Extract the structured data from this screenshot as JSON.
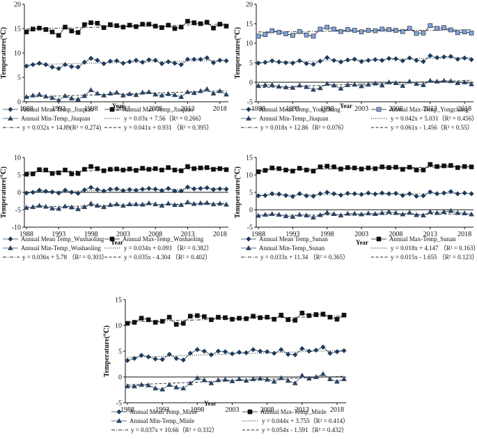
{
  "chart_data": [
    {
      "type": "line",
      "station": "Jiuquan",
      "x": [
        1988,
        1989,
        1990,
        1991,
        1992,
        1993,
        1994,
        1995,
        1996,
        1997,
        1998,
        1999,
        2000,
        2001,
        2002,
        2003,
        2004,
        2005,
        2006,
        2007,
        2008,
        2009,
        2010,
        2011,
        2012,
        2013,
        2014,
        2015,
        2016,
        2017,
        2018,
        2019
      ],
      "xticks": [
        "1988",
        "1993",
        "1998",
        "2003",
        "2008",
        "2013",
        "2018"
      ],
      "ylim": [
        0,
        20
      ],
      "yticks": [
        "0",
        "5",
        "10",
        "15",
        "20"
      ],
      "ylabel": "Temperature(℃)",
      "xlabel": "Year",
      "series": [
        {
          "name": "Annual Mean Temp_Jiuquan",
          "marker": "diamond",
          "values": [
            7.3,
            7.6,
            7.9,
            7.6,
            7.1,
            6.8,
            7.6,
            7.2,
            7.1,
            8.1,
            8.9,
            8.5,
            7.8,
            8.3,
            8.4,
            7.9,
            8.2,
            8.5,
            8.1,
            8.6,
            8.5,
            7.8,
            8.2,
            7.9,
            7.6,
            8.7,
            8.7,
            8.7,
            9.0,
            8.0,
            8.5,
            8.4
          ]
        },
        {
          "name": "Annual Max-Temp_Jiuquan",
          "marker": "square",
          "values": [
            14.3,
            14.9,
            15.1,
            14.8,
            14.3,
            13.6,
            15.3,
            14.5,
            14.2,
            15.8,
            16.2,
            16.1,
            15.2,
            15.8,
            15.6,
            15.3,
            15.7,
            15.4,
            15.9,
            15.9,
            15.5,
            15.2,
            15.7,
            15.0,
            15.3,
            16.5,
            16.2,
            16.0,
            16.3,
            15.1,
            15.9,
            15.5
          ]
        },
        {
          "name": "Annual Min-Temp_Jiuquan",
          "marker": "triangle",
          "values": [
            1.0,
            1.3,
            1.5,
            1.1,
            0.8,
            0.3,
            1.2,
            0.7,
            0.5,
            1.2,
            2.4,
            1.7,
            1.3,
            1.7,
            1.9,
            1.3,
            1.6,
            1.4,
            1.9,
            2.0,
            1.5,
            1.3,
            1.6,
            1.4,
            1.0,
            2.0,
            1.8,
            2.2,
            2.6,
            1.7,
            2.2,
            1.5
          ]
        }
      ],
      "trendlines": [
        {
          "label": "y = 0.03x + 7.56（R² = 0.266）",
          "slope": 0.03,
          "intercept": 7.56,
          "style": "dotted"
        },
        {
          "label": "y = 0.032x + 14.89(R² = 0.274)",
          "slope": 0.032,
          "intercept": 14.89,
          "style": "dashdot"
        },
        {
          "label": "y = 0.041x + 0.931 （R² = 0.395）",
          "slope": 0.041,
          "intercept": 0.931,
          "style": "dashed"
        }
      ]
    },
    {
      "type": "line",
      "station": "Yongchang",
      "x": [
        1988,
        1989,
        1990,
        1991,
        1992,
        1993,
        1994,
        1995,
        1996,
        1997,
        1998,
        1999,
        2000,
        2001,
        2002,
        2003,
        2004,
        2005,
        2006,
        2007,
        2008,
        2009,
        2010,
        2011,
        2012,
        2013,
        2014,
        2015,
        2016,
        2017,
        2018,
        2019
      ],
      "xticks": [
        "1988",
        "1993",
        "1998",
        "2003",
        "2008",
        "2013",
        "2018"
      ],
      "ylim": [
        -5,
        20
      ],
      "yticks": [
        "-5",
        "0",
        "5",
        "10",
        "15",
        "20"
      ],
      "ylabel": "Temperature(℃)",
      "xlabel": "Year",
      "series": [
        {
          "name": "Annual Mean Temp_Yongchang",
          "marker": "diamond",
          "values": [
            4.9,
            5.1,
            5.5,
            5.2,
            5.0,
            4.9,
            5.5,
            4.8,
            4.6,
            5.4,
            6.3,
            5.6,
            5.2,
            5.7,
            5.9,
            5.3,
            5.6,
            5.8,
            5.6,
            6.1,
            6.0,
            5.5,
            6.2,
            5.6,
            5.3,
            6.8,
            6.3,
            6.5,
            6.6,
            5.9,
            6.2,
            5.8
          ]
        },
        {
          "name": "Annual Max-Temp_Yongchang",
          "marker": "square",
          "values": [
            11.8,
            12.2,
            13.2,
            12.8,
            12.4,
            12.0,
            13.0,
            12.1,
            11.8,
            13.6,
            14.1,
            13.6,
            13.0,
            13.5,
            13.3,
            12.9,
            13.3,
            13.2,
            13.6,
            13.5,
            13.3,
            13.0,
            13.8,
            12.5,
            12.6,
            14.5,
            13.8,
            14.0,
            13.4,
            12.7,
            12.9,
            12.6
          ]
        },
        {
          "name": "Annual Min-Temp_Jiuquan",
          "marker": "triangle",
          "values": [
            -0.9,
            -0.7,
            -0.7,
            -1.1,
            -1.3,
            -1.4,
            -0.8,
            -1.2,
            -1.9,
            -1.5,
            -0.4,
            -0.8,
            -1.6,
            -0.7,
            -0.6,
            -1.0,
            -0.6,
            -0.3,
            -0.8,
            0.0,
            -0.2,
            -0.9,
            0.2,
            -0.4,
            -0.7,
            0.4,
            0.2,
            0.4,
            0.3,
            -0.2,
            0.0,
            -0.5
          ]
        }
      ],
      "trendlines": [
        {
          "label": "y = 0.042x + 5.031（R² = 0.456）",
          "slope": 0.042,
          "intercept": 5.031,
          "style": "dotted"
        },
        {
          "label": "y = 0.018x + 12.86（R² = 0.076）",
          "slope": 0.018,
          "intercept": 12.86,
          "style": "dashdot"
        },
        {
          "label": "y = 0.061x - 1.456（R² = 0.55）",
          "slope": 0.061,
          "intercept": -1.456,
          "style": "dashed"
        }
      ]
    },
    {
      "type": "line",
      "station": "Wushaoling",
      "x": [
        1988,
        1989,
        1990,
        1991,
        1992,
        1993,
        1994,
        1995,
        1996,
        1997,
        1998,
        1999,
        2000,
        2001,
        2002,
        2003,
        2004,
        2005,
        2006,
        2007,
        2008,
        2009,
        2010,
        2011,
        2012,
        2013,
        2014,
        2015,
        2016,
        2017,
        2018,
        2019
      ],
      "xticks": [
        "1988",
        "1993",
        "1998",
        "2003",
        "2008",
        "2013",
        "2018"
      ],
      "ylim": [
        -10,
        10
      ],
      "yticks": [
        "-10",
        "-5",
        "0",
        "5",
        "10"
      ],
      "ylabel": "Temperature(℃)",
      "xlabel": "Year",
      "series": [
        {
          "name": "Annual Mean Temp_Wushaoling",
          "marker": "diamond",
          "values": [
            -0.2,
            0.0,
            0.6,
            0.3,
            0.1,
            -0.2,
            0.6,
            0.0,
            -0.3,
            0.7,
            1.4,
            0.8,
            0.4,
            0.9,
            1.0,
            0.5,
            0.8,
            0.6,
            0.9,
            1.1,
            0.9,
            0.5,
            1.1,
            0.4,
            0.4,
            1.5,
            1.0,
            1.1,
            1.3,
            0.8,
            1.0,
            0.9
          ]
        },
        {
          "name": "Annual Max-Temp_Wushaoling",
          "marker": "square",
          "values": [
            5.2,
            5.3,
            6.5,
            6.4,
            5.4,
            5.6,
            6.4,
            5.3,
            5.4,
            6.6,
            7.4,
            6.8,
            6.2,
            6.6,
            6.7,
            6.4,
            6.7,
            6.3,
            6.9,
            6.6,
            6.8,
            6.4,
            7.1,
            6.4,
            6.2,
            7.4,
            6.8,
            7.0,
            7.1,
            6.6,
            6.8,
            6.5
          ]
        },
        {
          "name": "Annual Min-Temp_Wushaoling",
          "marker": "triangle",
          "values": [
            -4.4,
            -4.2,
            -3.8,
            -4.1,
            -4.6,
            -4.7,
            -4.0,
            -4.3,
            -4.8,
            -4.2,
            -3.2,
            -3.8,
            -4.2,
            -3.6,
            -3.4,
            -3.8,
            -3.4,
            -3.4,
            -3.5,
            -3.1,
            -3.4,
            -3.8,
            -3.2,
            -3.6,
            -3.6,
            -2.8,
            -3.3,
            -3.1,
            -3.0,
            -3.4,
            -3.2,
            -3.5
          ]
        }
      ],
      "trendlines": [
        {
          "label": "y = 0.034x + 0.093 （R² = 0.382）",
          "slope": 0.034,
          "intercept": 0.093,
          "style": "dotted"
        },
        {
          "label": "y = 0.036x + 5.78 （R² = 0.303）",
          "slope": 0.036,
          "intercept": 5.78,
          "style": "dashdot"
        },
        {
          "label": "y = 0.035x - 4.304 （R² = 0.402）",
          "slope": 0.035,
          "intercept": -4.304,
          "style": "dashed"
        }
      ]
    },
    {
      "type": "line",
      "station": "Sunan",
      "x": [
        1988,
        1989,
        1990,
        1991,
        1992,
        1993,
        1994,
        1995,
        1996,
        1997,
        1998,
        1999,
        2000,
        2001,
        2002,
        2003,
        2004,
        2005,
        2006,
        2007,
        2008,
        2009,
        2010,
        2011,
        2012,
        2013,
        2014,
        2015,
        2016,
        2017,
        2018,
        2019
      ],
      "xticks": [
        "1988",
        "1993",
        "1998",
        "2003",
        "2008",
        "2013",
        "2018"
      ],
      "ylim": [
        -5,
        15
      ],
      "yticks": [
        "-5",
        "0",
        "5",
        "10",
        "15"
      ],
      "ylabel": "Temperature(℃)",
      "xlabel": "Year",
      "series": [
        {
          "name": "Annual Mean Temp_Sunan",
          "marker": "diamond",
          "values": [
            4.0,
            4.1,
            4.6,
            4.5,
            4.1,
            3.8,
            4.6,
            4.0,
            3.9,
            4.6,
            5.0,
            4.6,
            4.2,
            4.7,
            4.6,
            4.4,
            4.8,
            4.5,
            4.8,
            4.6,
            4.7,
            4.1,
            4.6,
            3.9,
            4.0,
            5.1,
            4.6,
            4.8,
            5.2,
            4.6,
            4.8,
            4.6
          ]
        },
        {
          "name": "Annual Max-Temp_Sunan",
          "marker": "square",
          "values": [
            10.9,
            11.3,
            12.0,
            11.8,
            11.4,
            11.1,
            11.9,
            11.4,
            11.1,
            12.3,
            12.5,
            12.3,
            11.7,
            12.1,
            12.0,
            11.7,
            12.0,
            11.8,
            12.3,
            12.1,
            12.2,
            11.6,
            12.2,
            11.4,
            11.4,
            13.0,
            12.4,
            12.6,
            12.7,
            12.1,
            12.4,
            12.3
          ]
        },
        {
          "name": "Annual Min-Temp_Sunan",
          "marker": "triangle",
          "values": [
            -1.7,
            -1.4,
            -1.2,
            -1.4,
            -1.8,
            -2.0,
            -1.4,
            -1.6,
            -2.2,
            -1.5,
            -0.8,
            -1.2,
            -1.6,
            -1.1,
            -1.1,
            -1.3,
            -1.0,
            -1.2,
            -0.9,
            -0.6,
            -0.9,
            -1.3,
            -0.8,
            -1.5,
            -1.6,
            -0.6,
            -0.9,
            -0.6,
            -0.3,
            -0.9,
            -1.0,
            -1.3
          ]
        }
      ],
      "trendlines": [
        {
          "label": "y = 0.018x + 4.147 （R² = 0.163）",
          "slope": 0.018,
          "intercept": 4.147,
          "style": "dotted"
        },
        {
          "label": "y = 0.033x + 11.34 （R² = 0.365）",
          "slope": 0.033,
          "intercept": 11.34,
          "style": "dashdot"
        },
        {
          "label": "y = 0.015x - 1.655 （R² = 0.123）",
          "slope": 0.015,
          "intercept": -1.655,
          "style": "dashed"
        }
      ]
    },
    {
      "type": "line",
      "station": "Minle",
      "x": [
        1988,
        1989,
        1990,
        1991,
        1992,
        1993,
        1994,
        1995,
        1996,
        1997,
        1998,
        1999,
        2000,
        2001,
        2002,
        2003,
        2004,
        2005,
        2006,
        2007,
        2008,
        2009,
        2010,
        2011,
        2012,
        2013,
        2014,
        2015,
        2016,
        2017,
        2018,
        2019
      ],
      "xticks": [
        "1988",
        "1993",
        "1998",
        "2003",
        "2008",
        "2013",
        "2018"
      ],
      "ylim": [
        -5,
        15
      ],
      "yticks": [
        "-5",
        "0",
        "5",
        "10",
        "15"
      ],
      "ylabel": "Temperature(℃)",
      "xlabel": "Year",
      "series": [
        {
          "name": "Annual Mean Temp_Minle",
          "marker": "diamond",
          "values": [
            3.2,
            3.6,
            4.2,
            3.9,
            3.5,
            3.4,
            4.4,
            3.6,
            3.3,
            4.6,
            5.3,
            5.0,
            4.3,
            5.0,
            4.9,
            4.5,
            4.8,
            4.7,
            5.3,
            5.0,
            4.9,
            4.6,
            5.3,
            4.4,
            4.3,
            5.5,
            5.0,
            5.2,
            5.8,
            4.6,
            4.9,
            5.1
          ]
        },
        {
          "name": "Annual Max-Temp_Minle",
          "marker": "square",
          "values": [
            10.4,
            10.6,
            11.4,
            11.1,
            10.6,
            10.8,
            11.6,
            10.2,
            10.4,
            11.8,
            11.9,
            11.7,
            11.1,
            11.6,
            11.5,
            11.2,
            11.4,
            11.3,
            11.8,
            11.5,
            11.6,
            11.2,
            12.0,
            11.1,
            11.0,
            12.4,
            11.9,
            12.1,
            12.2,
            11.6,
            11.2,
            12.0
          ]
        },
        {
          "name": "Annual Min-Temp_Minle",
          "marker": "triangle",
          "values": [
            -1.8,
            -1.8,
            -1.5,
            -1.6,
            -2.2,
            -2.4,
            -1.5,
            -2.0,
            -2.2,
            -1.2,
            -0.2,
            -0.6,
            -1.2,
            -0.6,
            -0.5,
            -0.8,
            -0.4,
            -0.7,
            -0.4,
            -0.3,
            -0.5,
            -0.9,
            -0.2,
            -0.7,
            -1.2,
            0.3,
            -0.3,
            0.0,
            0.6,
            -0.4,
            -0.9,
            -0.4
          ]
        }
      ],
      "trendlines": [
        {
          "label": "y = 0.044x + 3.755（R² = 0.414）",
          "slope": 0.044,
          "intercept": 3.755,
          "style": "dotted"
        },
        {
          "label": "y = 0.037x + 10.66（R² = 0.332）",
          "slope": 0.037,
          "intercept": 10.66,
          "style": "dashdot"
        },
        {
          "label": "y = 0.054x - 1.591（R² = 0.432）",
          "slope": 0.054,
          "intercept": -1.591,
          "style": "dashed"
        }
      ]
    }
  ],
  "colors": {
    "mean": "#1f3b5a",
    "max": "#111111",
    "max_alt_fill": "#7ea6e0",
    "min": "#2b4361",
    "axis": "#111111",
    "trend": "#222222"
  }
}
